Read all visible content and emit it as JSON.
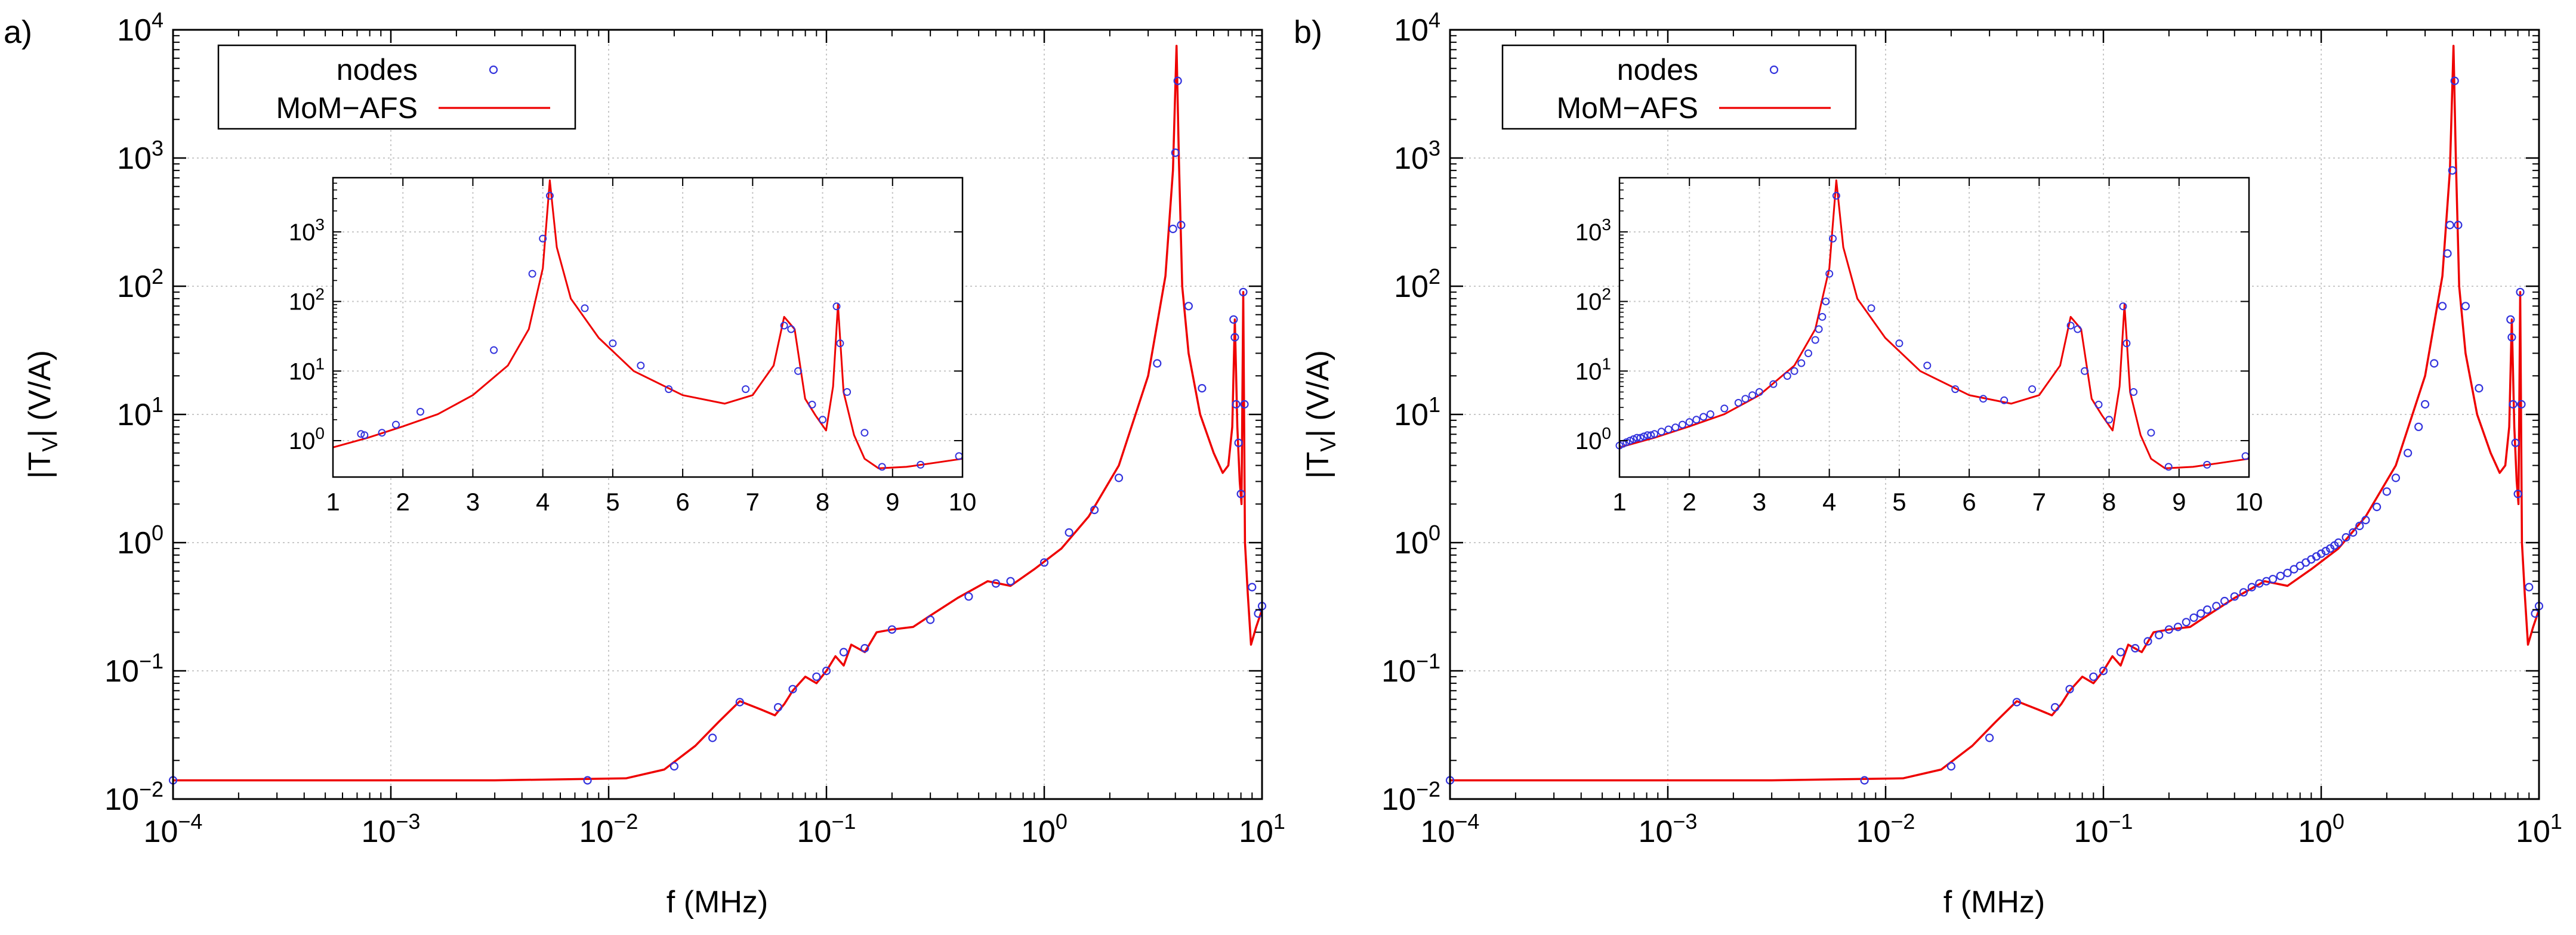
{
  "figure": {
    "panels": [
      "a)",
      "b)"
    ],
    "xlabel": "f (MHz)",
    "ylabel_main": "|T",
    "ylabel_sub": "V",
    "ylabel_rest": "| (V/A)",
    "main_xticks": [
      {
        "value": -4,
        "base": "10",
        "exp": "−4"
      },
      {
        "value": -3,
        "base": "10",
        "exp": "−3"
      },
      {
        "value": -2,
        "base": "10",
        "exp": "−2"
      },
      {
        "value": -1,
        "base": "10",
        "exp": "−1"
      },
      {
        "value": 0,
        "base": "10",
        "exp": "0"
      },
      {
        "value": 1,
        "base": "10",
        "exp": "1"
      }
    ],
    "main_yticks": [
      {
        "value": -2,
        "base": "10",
        "exp": "−2"
      },
      {
        "value": -1,
        "base": "10",
        "exp": "−1"
      },
      {
        "value": 0,
        "base": "10",
        "exp": "0"
      },
      {
        "value": 1,
        "base": "10",
        "exp": "1"
      },
      {
        "value": 2,
        "base": "10",
        "exp": "2"
      },
      {
        "value": 3,
        "base": "10",
        "exp": "3"
      },
      {
        "value": 4,
        "base": "10",
        "exp": "4"
      }
    ],
    "inset_xticks": [
      "1",
      "2",
      "3",
      "4",
      "5",
      "6",
      "7",
      "8",
      "9",
      "10"
    ],
    "inset_yticks": [
      {
        "value": 0,
        "base": "10",
        "exp": "0"
      },
      {
        "value": 1,
        "base": "10",
        "exp": "1"
      },
      {
        "value": 2,
        "base": "10",
        "exp": "2"
      },
      {
        "value": 3,
        "base": "10",
        "exp": "3"
      }
    ],
    "legend": [
      {
        "label": "nodes",
        "marker": "circle",
        "color": "#3333dd"
      },
      {
        "label": "MoM−AFS",
        "marker": "line",
        "color": "#ee0000"
      }
    ],
    "colors": {
      "curve": "#ee0000",
      "nodes": "#3333dd",
      "grid": "#c8c8c8"
    }
  },
  "chart_data": [
    {
      "type": "line",
      "panel": "a)",
      "title": "",
      "xlabel": "f (MHz)",
      "ylabel": "|T_V| (V/A)",
      "xscale": "log",
      "yscale": "log",
      "xlim": [
        0.0001,
        10
      ],
      "ylim": [
        0.01,
        10000
      ],
      "legend_position": "top-left",
      "series": [
        {
          "name": "MoM−AFS",
          "style": "line",
          "x": [
            0.0001,
            0.003,
            0.012,
            0.018,
            0.025,
            0.032,
            0.04,
            0.05,
            0.058,
            0.064,
            0.07,
            0.08,
            0.09,
            0.1,
            0.11,
            0.12,
            0.13,
            0.15,
            0.17,
            0.2,
            0.25,
            0.3,
            0.4,
            0.55,
            0.7,
            0.9,
            1.2,
            1.6,
            2.2,
            3.0,
            3.6,
            3.9,
            4.05,
            4.15,
            4.3,
            4.6,
            5.2,
            6.0,
            6.6,
            7.0,
            7.3,
            7.5,
            7.7,
            7.9,
            8.05,
            8.2,
            8.35,
            8.6,
            8.9,
            9.4,
            10
          ],
          "y": [
            0.014,
            0.014,
            0.0145,
            0.017,
            0.026,
            0.04,
            0.058,
            0.05,
            0.045,
            0.055,
            0.07,
            0.09,
            0.08,
            0.1,
            0.13,
            0.11,
            0.16,
            0.14,
            0.2,
            0.21,
            0.22,
            0.27,
            0.37,
            0.5,
            0.46,
            0.62,
            0.9,
            1.6,
            4,
            20,
            120,
            800,
            7500,
            1000,
            100,
            30,
            10,
            5,
            3.5,
            4,
            8,
            55,
            8,
            3,
            2,
            90,
            1,
            0.4,
            0.16,
            0.22,
            0.3
          ]
        },
        {
          "name": "nodes",
          "style": "circle",
          "x": [
            0.0001,
            0.008,
            0.02,
            0.03,
            0.04,
            0.06,
            0.07,
            0.09,
            0.1,
            0.12,
            0.15,
            0.2,
            0.3,
            0.45,
            0.6,
            0.7,
            1.0,
            1.3,
            1.7,
            2.2,
            3.3,
            3.9,
            4.0,
            4.1,
            4.25,
            4.6,
            5.3,
            7.4,
            7.5,
            7.6,
            7.8,
            8.0,
            8.2,
            8.3,
            9.0,
            9.6,
            10
          ],
          "y": [
            0.014,
            0.014,
            0.018,
            0.03,
            0.057,
            0.052,
            0.072,
            0.09,
            0.1,
            0.14,
            0.15,
            0.21,
            0.25,
            0.38,
            0.48,
            0.5,
            0.7,
            1.2,
            1.8,
            3.2,
            25,
            280,
            1100,
            4000,
            300,
            70,
            16,
            55,
            40,
            12,
            6,
            2.4,
            90,
            12,
            0.45,
            0.28,
            0.32
          ]
        }
      ],
      "inset": {
        "type": "line",
        "xscale": "linear",
        "yscale": "log",
        "xlim": [
          1,
          10
        ],
        "ylim": [
          0.3,
          6000
        ],
        "series": [
          {
            "name": "MoM−AFS",
            "style": "line",
            "x": [
              1,
              1.5,
              2,
              2.5,
              3,
              3.5,
              3.8,
              4.0,
              4.1,
              4.2,
              4.4,
              4.8,
              5.3,
              6.0,
              6.6,
              7.0,
              7.3,
              7.45,
              7.6,
              7.75,
              7.9,
              8.05,
              8.15,
              8.22,
              8.3,
              8.45,
              8.6,
              8.8,
              9.2,
              9.6,
              10
            ],
            "y": [
              0.8,
              1.1,
              1.6,
              2.4,
              4.5,
              12,
              40,
              300,
              5500,
              600,
              110,
              30,
              10,
              4.5,
              3.4,
              4.5,
              12,
              60,
              40,
              4,
              2.3,
              1.4,
              6,
              90,
              5,
              1.2,
              0.55,
              0.4,
              0.42,
              0.48,
              0.55
            ]
          },
          {
            "name": "nodes",
            "style": "circle",
            "x": [
              1.4,
              1.45,
              1.7,
              1.9,
              2.25,
              3.3,
              3.85,
              4.0,
              4.1,
              4.6,
              5.0,
              5.4,
              5.8,
              6.9,
              7.45,
              7.55,
              7.65,
              7.85,
              8.0,
              8.2,
              8.25,
              8.35,
              8.6,
              8.85,
              9.4,
              9.95
            ],
            "y": [
              1.25,
              1.2,
              1.3,
              1.7,
              2.6,
              20,
              250,
              800,
              3300,
              80,
              25,
              12,
              5.5,
              5.5,
              45,
              40,
              10,
              3.3,
              2,
              85,
              25,
              5,
              1.3,
              0.42,
              0.45,
              0.6
            ]
          }
        ]
      }
    },
    {
      "type": "line",
      "panel": "b)",
      "title": "",
      "xlabel": "f (MHz)",
      "ylabel": "|T_V| (V/A)",
      "xscale": "log",
      "yscale": "log",
      "xlim": [
        0.0001,
        10
      ],
      "ylim": [
        0.01,
        10000
      ],
      "legend_position": "top-left",
      "series": [
        {
          "name": "MoM−AFS",
          "style": "line",
          "x": [
            0.0001,
            0.003,
            0.012,
            0.018,
            0.025,
            0.032,
            0.04,
            0.05,
            0.058,
            0.064,
            0.07,
            0.08,
            0.09,
            0.1,
            0.11,
            0.12,
            0.13,
            0.15,
            0.17,
            0.2,
            0.25,
            0.3,
            0.4,
            0.55,
            0.7,
            0.9,
            1.2,
            1.6,
            2.2,
            3.0,
            3.6,
            3.9,
            4.05,
            4.15,
            4.3,
            4.6,
            5.2,
            6.0,
            6.6,
            7.0,
            7.3,
            7.5,
            7.7,
            7.9,
            8.05,
            8.2,
            8.35,
            8.6,
            8.9,
            9.4,
            10
          ],
          "y": [
            0.014,
            0.014,
            0.0145,
            0.017,
            0.026,
            0.04,
            0.058,
            0.05,
            0.045,
            0.055,
            0.07,
            0.09,
            0.08,
            0.1,
            0.13,
            0.11,
            0.16,
            0.14,
            0.2,
            0.21,
            0.22,
            0.27,
            0.37,
            0.5,
            0.46,
            0.62,
            0.9,
            1.6,
            4,
            20,
            120,
            800,
            7500,
            1000,
            100,
            30,
            10,
            5,
            3.5,
            4,
            8,
            55,
            8,
            3,
            2,
            90,
            1,
            0.4,
            0.16,
            0.22,
            0.3
          ]
        },
        {
          "name": "nodes",
          "style": "circle",
          "x": [
            0.0001,
            0.008,
            0.02,
            0.03,
            0.04,
            0.06,
            0.07,
            0.09,
            0.1,
            0.12,
            0.14,
            0.16,
            0.18,
            0.2,
            0.22,
            0.24,
            0.26,
            0.28,
            0.3,
            0.33,
            0.36,
            0.4,
            0.44,
            0.48,
            0.52,
            0.56,
            0.6,
            0.65,
            0.7,
            0.75,
            0.8,
            0.85,
            0.9,
            0.95,
            1.0,
            1.05,
            1.1,
            1.15,
            1.2,
            1.3,
            1.4,
            1.5,
            1.6,
            1.8,
            2.0,
            2.2,
            2.5,
            2.8,
            3.0,
            3.3,
            3.6,
            3.8,
            3.9,
            4.0,
            4.1,
            4.25,
            4.6,
            5.3,
            7.4,
            7.5,
            7.6,
            7.8,
            8.0,
            8.2,
            8.3,
            9.0,
            9.6,
            10
          ],
          "y": [
            0.014,
            0.014,
            0.018,
            0.03,
            0.057,
            0.052,
            0.072,
            0.09,
            0.1,
            0.14,
            0.15,
            0.17,
            0.19,
            0.21,
            0.22,
            0.24,
            0.26,
            0.28,
            0.3,
            0.32,
            0.35,
            0.38,
            0.41,
            0.45,
            0.48,
            0.5,
            0.52,
            0.55,
            0.58,
            0.62,
            0.66,
            0.7,
            0.74,
            0.78,
            0.82,
            0.86,
            0.9,
            0.95,
            1.0,
            1.1,
            1.2,
            1.35,
            1.5,
            1.9,
            2.5,
            3.2,
            5,
            8,
            12,
            25,
            70,
            180,
            300,
            800,
            4000,
            300,
            70,
            16,
            55,
            40,
            12,
            6,
            2.4,
            90,
            12,
            0.45,
            0.28,
            0.32
          ]
        }
      ],
      "inset": {
        "type": "line",
        "xscale": "linear",
        "yscale": "log",
        "xlim": [
          1,
          10
        ],
        "ylim": [
          0.3,
          6000
        ],
        "series": [
          {
            "name": "MoM−AFS",
            "style": "line",
            "x": [
              1,
              1.5,
              2,
              2.5,
              3,
              3.5,
              3.8,
              4.0,
              4.1,
              4.2,
              4.4,
              4.8,
              5.3,
              6.0,
              6.6,
              7.0,
              7.3,
              7.45,
              7.6,
              7.75,
              7.9,
              8.05,
              8.15,
              8.22,
              8.3,
              8.45,
              8.6,
              8.8,
              9.2,
              9.6,
              10
            ],
            "y": [
              0.8,
              1.1,
              1.6,
              2.4,
              4.5,
              12,
              40,
              300,
              5500,
              600,
              110,
              30,
              10,
              4.5,
              3.4,
              4.5,
              12,
              60,
              40,
              4,
              2.3,
              1.4,
              6,
              90,
              5,
              1.2,
              0.55,
              0.4,
              0.42,
              0.48,
              0.55
            ]
          },
          {
            "name": "nodes",
            "style": "circle",
            "x": [
              1.0,
              1.05,
              1.1,
              1.15,
              1.2,
              1.25,
              1.3,
              1.35,
              1.4,
              1.45,
              1.5,
              1.6,
              1.7,
              1.8,
              1.9,
              2.0,
              2.1,
              2.2,
              2.3,
              2.5,
              2.7,
              2.8,
              2.9,
              3.0,
              3.2,
              3.4,
              3.5,
              3.6,
              3.7,
              3.8,
              3.85,
              3.9,
              3.95,
              4.0,
              4.05,
              4.1,
              4.6,
              5.0,
              5.4,
              5.8,
              6.2,
              6.5,
              6.9,
              7.45,
              7.55,
              7.65,
              7.85,
              8.0,
              8.2,
              8.25,
              8.35,
              8.6,
              8.85,
              9.4,
              9.95
            ],
            "y": [
              0.85,
              0.9,
              0.95,
              1.0,
              1.05,
              1.1,
              1.1,
              1.15,
              1.2,
              1.2,
              1.25,
              1.35,
              1.45,
              1.55,
              1.7,
              1.85,
              2.0,
              2.2,
              2.4,
              2.9,
              3.5,
              4.0,
              4.5,
              5.0,
              6.5,
              8.5,
              10,
              13,
              18,
              28,
              40,
              60,
              100,
              250,
              800,
              3300,
              80,
              25,
              12,
              5.5,
              4.0,
              3.8,
              5.5,
              45,
              40,
              10,
              3.3,
              2,
              85,
              25,
              5,
              1.3,
              0.42,
              0.45,
              0.6
            ]
          }
        ]
      }
    }
  ]
}
